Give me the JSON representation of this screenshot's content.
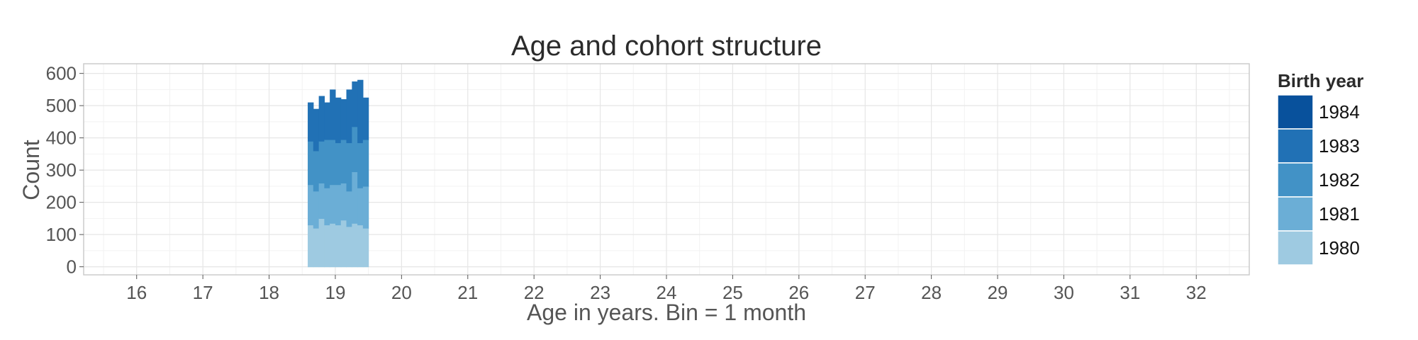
{
  "chart_data": {
    "type": "bar",
    "stacked": true,
    "title": "Age and cohort structure",
    "xlabel": "Age in years. Bin = 1 month",
    "ylabel": "Count",
    "xlim": [
      15.2,
      32.8
    ],
    "ylim": [
      -25,
      630
    ],
    "x_ticks": [
      16,
      17,
      18,
      19,
      20,
      21,
      22,
      23,
      24,
      25,
      26,
      27,
      28,
      29,
      30,
      31,
      32
    ],
    "y_ticks": [
      0,
      100,
      200,
      300,
      400,
      500,
      600
    ],
    "grid": true,
    "bin_width": 0.0833,
    "x": [
      18.625,
      18.708,
      18.792,
      18.875,
      18.958,
      19.042,
      19.125,
      19.208,
      19.292,
      19.375,
      19.458
    ],
    "legend": {
      "title": "Birth year",
      "placement": "right"
    },
    "series": [
      {
        "name": "1980",
        "color": "#9ecae1",
        "values": [
          130,
          120,
          150,
          130,
          135,
          130,
          145,
          125,
          135,
          130,
          120
        ]
      },
      {
        "name": "1981",
        "color": "#6baed6",
        "values": [
          125,
          115,
          110,
          115,
          120,
          125,
          115,
          110,
          160,
          115,
          130
        ]
      },
      {
        "name": "1982",
        "color": "#4292c6",
        "values": [
          135,
          125,
          130,
          150,
          140,
          130,
          135,
          150,
          140,
          140,
          145
        ]
      },
      {
        "name": "1983",
        "color": "#2171b5",
        "values": [
          120,
          130,
          140,
          115,
          155,
          140,
          125,
          165,
          140,
          195,
          130
        ]
      },
      {
        "name": "1984",
        "color": "#08519c",
        "values": [
          0,
          0,
          0,
          0,
          0,
          0,
          0,
          0,
          0,
          0,
          0
        ]
      }
    ]
  }
}
